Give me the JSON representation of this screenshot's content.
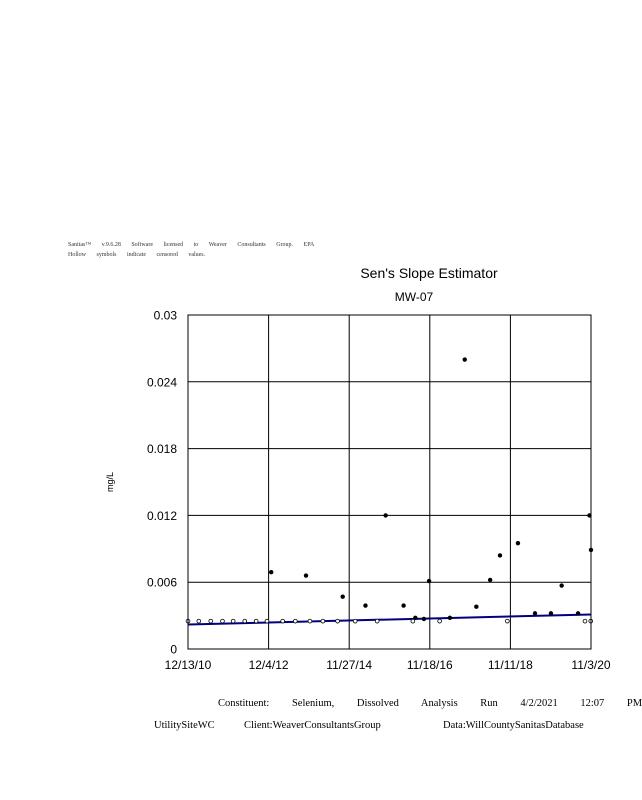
{
  "header": {
    "line1": "Sanitas™ v.9.6.28 Software licensed to Weaver Consultants Group. EPA",
    "line2": "Hollow symbols indicate censored values."
  },
  "chart_data": {
    "type": "scatter",
    "title": "Sen's Slope Estimator",
    "subtitle": "MW-07",
    "ylabel": "mg/L",
    "xlabel": "",
    "xlim": [
      "2010-12-13",
      "2020-11-03"
    ],
    "ylim": [
      0,
      0.03
    ],
    "x_ticks": [
      "12/13/10",
      "12/4/12",
      "11/27/14",
      "11/18/16",
      "11/11/18",
      "11/3/20"
    ],
    "y_ticks": [
      "0",
      "0.006",
      "0.012",
      "0.018",
      "0.024",
      "0.03"
    ],
    "grid": true,
    "legend": "none",
    "colors": {
      "points": "#000000",
      "trend": "#000080",
      "grid": "#000000"
    },
    "series": [
      {
        "marker": "filled",
        "points": [
          {
            "x": "2012-12-28",
            "y": 0.0069
          },
          {
            "x": "2013-11-05",
            "y": 0.0066
          },
          {
            "x": "2014-09-30",
            "y": 0.0047
          },
          {
            "x": "2015-04-22",
            "y": 0.0039
          },
          {
            "x": "2015-10-20",
            "y": 0.012
          },
          {
            "x": "2016-03-29",
            "y": 0.0039
          },
          {
            "x": "2016-07-12",
            "y": 0.0028
          },
          {
            "x": "2016-09-27",
            "y": 0.0027
          },
          {
            "x": "2016-11-12",
            "y": 0.0061
          },
          {
            "x": "2017-05-18",
            "y": 0.0028
          },
          {
            "x": "2017-09-28",
            "y": 0.026
          },
          {
            "x": "2018-01-10",
            "y": 0.0038
          },
          {
            "x": "2018-05-14",
            "y": 0.0062
          },
          {
            "x": "2018-08-10",
            "y": 0.0084
          },
          {
            "x": "2019-01-18",
            "y": 0.0095
          },
          {
            "x": "2019-06-20",
            "y": 0.0032
          },
          {
            "x": "2019-11-10",
            "y": 0.0032
          },
          {
            "x": "2020-02-14",
            "y": 0.0057
          },
          {
            "x": "2020-07-10",
            "y": 0.0032
          },
          {
            "x": "2020-10-20",
            "y": 0.012
          },
          {
            "x": "2020-11-03",
            "y": 0.0089
          }
        ]
      },
      {
        "marker": "hollow",
        "points": [
          {
            "x": "2010-12-13",
            "y": 0.0025
          },
          {
            "x": "2011-03-20",
            "y": 0.0025
          },
          {
            "x": "2011-07-05",
            "y": 0.0025
          },
          {
            "x": "2011-10-18",
            "y": 0.0025
          },
          {
            "x": "2012-01-22",
            "y": 0.0025
          },
          {
            "x": "2012-05-05",
            "y": 0.0025
          },
          {
            "x": "2012-08-15",
            "y": 0.0025
          },
          {
            "x": "2012-11-20",
            "y": 0.0025
          },
          {
            "x": "2013-04-10",
            "y": 0.0025
          },
          {
            "x": "2013-08-01",
            "y": 0.0025
          },
          {
            "x": "2013-12-10",
            "y": 0.0025
          },
          {
            "x": "2014-04-05",
            "y": 0.0025
          },
          {
            "x": "2014-08-15",
            "y": 0.0025
          },
          {
            "x": "2015-01-20",
            "y": 0.0025
          },
          {
            "x": "2015-08-05",
            "y": 0.0025
          },
          {
            "x": "2016-06-20",
            "y": 0.0025
          },
          {
            "x": "2017-02-15",
            "y": 0.0025
          },
          {
            "x": "2018-10-15",
            "y": 0.0025
          },
          {
            "x": "2020-09-10",
            "y": 0.0025
          },
          {
            "x": "2020-11-01",
            "y": 0.0025
          }
        ]
      }
    ],
    "trend_line": {
      "start": {
        "x": "2010-12-13",
        "y": 0.0022
      },
      "end": {
        "x": "2020-11-03",
        "y": 0.0031
      }
    }
  },
  "footer": {
    "constituent": "Constituent: Selenium, Dissolved Analysis Run 4/2/2021 12:07 PM",
    "site": "UtilitySiteWC",
    "client": "Client:WeaverConsultantsGroup",
    "data": "Data:WillCountySanitasDatabase"
  }
}
